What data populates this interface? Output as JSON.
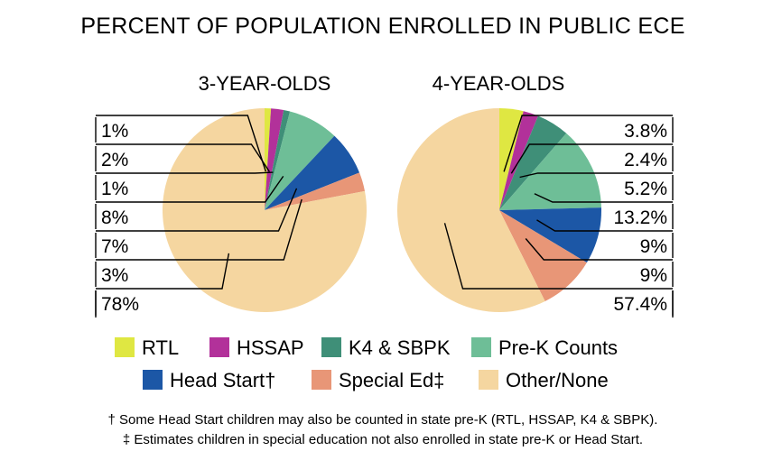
{
  "chart_data": {
    "type": "pie",
    "title": "PERCENT OF POPULATION ENROLLED IN PUBLIC ECE",
    "categories": [
      "RTL",
      "HSSAP",
      "K4 & SBPK",
      "Pre-K Counts",
      "Head Start",
      "Special Ed",
      "Other/None"
    ],
    "legend_labels": [
      "RTL",
      "HSSAP",
      "K4 & SBPK",
      "Pre-K Counts",
      "Head Start†",
      "Special Ed‡",
      "Other/None"
    ],
    "colors": [
      "#dfe742",
      "#b2319a",
      "#3f8f78",
      "#6ebe97",
      "#1c57a6",
      "#e89677",
      "#f5d6a0"
    ],
    "legend_placement": "bottom",
    "charts": [
      {
        "subtitle": "3-YEAR-OLDS",
        "values": [
          1,
          2,
          1,
          8,
          7,
          3,
          78
        ],
        "labels": [
          "1%",
          "2%",
          "1%",
          "8%",
          "7%",
          "3%",
          "78%"
        ]
      },
      {
        "subtitle": "4-YEAR-OLDS",
        "values": [
          3.8,
          2.4,
          5.2,
          13.2,
          9,
          9,
          57.4
        ],
        "labels": [
          "3.8%",
          "2.4%",
          "5.2%",
          "13.2%",
          "9%",
          "9%",
          "57.4%"
        ]
      }
    ]
  },
  "footnotes": [
    "† Some Head Start children may also be counted in state pre-K (RTL, HSSAP, K4 & SBPK).",
    "‡ Estimates children in special education not also enrolled in state pre-K or Head Start."
  ]
}
